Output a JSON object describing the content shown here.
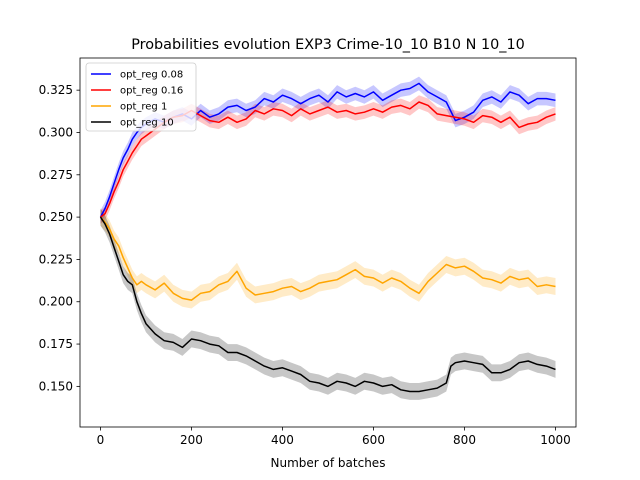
{
  "chart_data": {
    "type": "line",
    "title": "Probabilities evolution EXP3 Crime-10_10 B10 N 10_10",
    "xlabel": "Number of batches",
    "ylabel": "",
    "xlim": [
      -45,
      1045
    ],
    "ylim": [
      0.126,
      0.344
    ],
    "xticks": [
      0,
      200,
      400,
      600,
      800,
      1000
    ],
    "yticks": [
      0.15,
      0.175,
      0.2,
      0.225,
      0.25,
      0.275,
      0.3,
      0.325
    ],
    "ytick_labels": [
      "0.150",
      "0.175",
      "0.200",
      "0.225",
      "0.250",
      "0.275",
      "0.300",
      "0.325"
    ],
    "legend_position": "upper-left",
    "grid": false,
    "shaded_band": "confidence band around each series",
    "series": [
      {
        "name": "opt_reg 0.08",
        "color": "#0000ff",
        "band": 0.004,
        "x": [
          0,
          10,
          20,
          30,
          40,
          50,
          60,
          70,
          80,
          90,
          100,
          120,
          140,
          160,
          180,
          200,
          220,
          240,
          260,
          280,
          300,
          320,
          340,
          360,
          380,
          400,
          420,
          440,
          460,
          480,
          500,
          520,
          540,
          560,
          580,
          600,
          620,
          640,
          660,
          680,
          700,
          720,
          740,
          760,
          780,
          800,
          820,
          840,
          860,
          880,
          900,
          920,
          940,
          960,
          980,
          1000
        ],
        "y": [
          0.25,
          0.255,
          0.262,
          0.27,
          0.278,
          0.285,
          0.29,
          0.296,
          0.3,
          0.303,
          0.305,
          0.308,
          0.306,
          0.309,
          0.311,
          0.308,
          0.313,
          0.309,
          0.311,
          0.315,
          0.316,
          0.313,
          0.315,
          0.32,
          0.318,
          0.322,
          0.32,
          0.317,
          0.32,
          0.322,
          0.318,
          0.324,
          0.321,
          0.323,
          0.321,
          0.324,
          0.319,
          0.322,
          0.325,
          0.326,
          0.329,
          0.324,
          0.321,
          0.318,
          0.307,
          0.309,
          0.312,
          0.319,
          0.321,
          0.318,
          0.324,
          0.322,
          0.317,
          0.32,
          0.32,
          0.319
        ]
      },
      {
        "name": "opt_reg 0.16",
        "color": "#ff0000",
        "band": 0.004,
        "x": [
          0,
          10,
          20,
          30,
          40,
          50,
          60,
          70,
          80,
          90,
          100,
          120,
          140,
          160,
          180,
          200,
          220,
          240,
          260,
          280,
          300,
          320,
          340,
          360,
          380,
          400,
          420,
          440,
          460,
          480,
          500,
          520,
          540,
          560,
          580,
          600,
          620,
          640,
          660,
          680,
          700,
          720,
          740,
          760,
          780,
          800,
          820,
          840,
          860,
          880,
          900,
          920,
          940,
          960,
          980,
          1000
        ],
        "y": [
          0.25,
          0.252,
          0.258,
          0.265,
          0.271,
          0.278,
          0.283,
          0.288,
          0.292,
          0.296,
          0.298,
          0.302,
          0.306,
          0.309,
          0.31,
          0.313,
          0.31,
          0.307,
          0.306,
          0.309,
          0.306,
          0.308,
          0.313,
          0.311,
          0.314,
          0.313,
          0.31,
          0.314,
          0.311,
          0.313,
          0.315,
          0.312,
          0.313,
          0.311,
          0.312,
          0.314,
          0.312,
          0.315,
          0.316,
          0.314,
          0.318,
          0.316,
          0.311,
          0.31,
          0.309,
          0.308,
          0.306,
          0.31,
          0.309,
          0.306,
          0.309,
          0.303,
          0.305,
          0.306,
          0.309,
          0.311
        ]
      },
      {
        "name": "opt_reg 1",
        "color": "#ffa500",
        "band": 0.005,
        "x": [
          0,
          10,
          20,
          30,
          40,
          50,
          60,
          70,
          80,
          90,
          100,
          120,
          140,
          160,
          180,
          200,
          220,
          240,
          260,
          280,
          300,
          320,
          340,
          360,
          380,
          400,
          420,
          440,
          460,
          480,
          500,
          520,
          540,
          560,
          580,
          600,
          620,
          640,
          660,
          680,
          700,
          720,
          740,
          760,
          780,
          800,
          820,
          840,
          860,
          880,
          900,
          920,
          940,
          960,
          980,
          1000
        ],
        "y": [
          0.25,
          0.247,
          0.243,
          0.237,
          0.233,
          0.226,
          0.22,
          0.214,
          0.21,
          0.212,
          0.21,
          0.207,
          0.211,
          0.205,
          0.202,
          0.201,
          0.205,
          0.206,
          0.21,
          0.212,
          0.218,
          0.208,
          0.204,
          0.205,
          0.206,
          0.208,
          0.209,
          0.206,
          0.208,
          0.211,
          0.212,
          0.213,
          0.216,
          0.219,
          0.215,
          0.214,
          0.211,
          0.214,
          0.212,
          0.208,
          0.205,
          0.212,
          0.217,
          0.222,
          0.22,
          0.221,
          0.218,
          0.214,
          0.213,
          0.211,
          0.215,
          0.213,
          0.214,
          0.209,
          0.21,
          0.209
        ]
      },
      {
        "name": "opt_reg 10",
        "color": "#000000",
        "band": 0.005,
        "x": [
          0,
          10,
          20,
          30,
          40,
          50,
          60,
          70,
          80,
          90,
          100,
          120,
          140,
          160,
          180,
          200,
          220,
          240,
          260,
          280,
          300,
          320,
          340,
          360,
          380,
          400,
          420,
          440,
          460,
          480,
          500,
          520,
          540,
          560,
          580,
          600,
          620,
          640,
          660,
          680,
          700,
          720,
          740,
          760,
          770,
          780,
          800,
          820,
          840,
          860,
          880,
          900,
          920,
          940,
          960,
          980,
          1000
        ],
        "y": [
          0.25,
          0.246,
          0.24,
          0.232,
          0.224,
          0.216,
          0.212,
          0.21,
          0.2,
          0.193,
          0.187,
          0.181,
          0.177,
          0.176,
          0.173,
          0.178,
          0.177,
          0.175,
          0.174,
          0.17,
          0.17,
          0.168,
          0.165,
          0.162,
          0.16,
          0.161,
          0.159,
          0.157,
          0.153,
          0.152,
          0.15,
          0.153,
          0.152,
          0.15,
          0.153,
          0.152,
          0.15,
          0.151,
          0.148,
          0.147,
          0.147,
          0.148,
          0.149,
          0.152,
          0.162,
          0.164,
          0.165,
          0.164,
          0.163,
          0.158,
          0.158,
          0.16,
          0.164,
          0.165,
          0.163,
          0.162,
          0.16
        ]
      }
    ]
  }
}
